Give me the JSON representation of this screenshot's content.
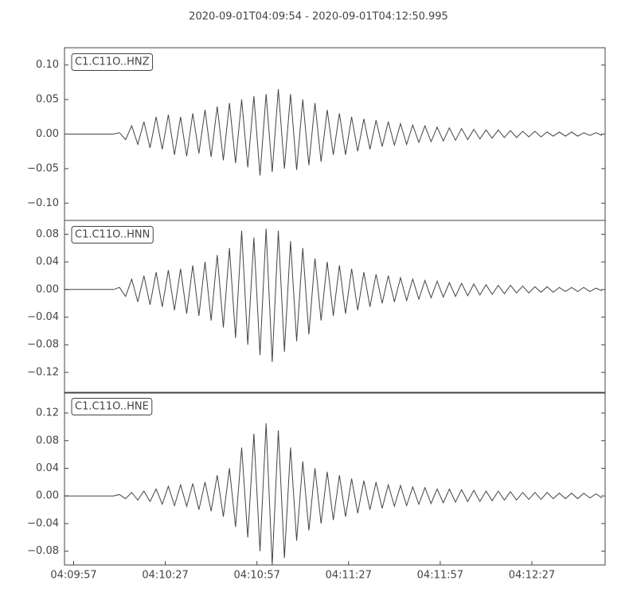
{
  "chart_data": [
    {
      "type": "line",
      "title": "2020-09-01T04:09:54  -  2020-09-01T04:12:50.995",
      "x": [
        0,
        2,
        4,
        6,
        8,
        10,
        12,
        14,
        16,
        18,
        20,
        22,
        24,
        26,
        28,
        30,
        32,
        34,
        36,
        38,
        40,
        42,
        44,
        46,
        48,
        50,
        52,
        54,
        56,
        58,
        60,
        62,
        64,
        66,
        68,
        70,
        72,
        74,
        76,
        78,
        80,
        82,
        84,
        86,
        88,
        90,
        92,
        94,
        96,
        98,
        100,
        102,
        104,
        106,
        108,
        110,
        112,
        114,
        116,
        118,
        120,
        122,
        124,
        126,
        128,
        130,
        132,
        134,
        136,
        138,
        140,
        142,
        144,
        146,
        148,
        150,
        152,
        154,
        156,
        158,
        160,
        162,
        164,
        166,
        168,
        170,
        172,
        174,
        176
      ],
      "xlim": [
        0,
        176.995
      ],
      "ylim": [
        -0.125,
        0.125
      ],
      "yticks": [
        {
          "value": -0.1,
          "label": "−0.10"
        },
        {
          "value": -0.05,
          "label": "−0.05"
        },
        {
          "value": 0,
          "label": "0.00"
        },
        {
          "value": 0.05,
          "label": "0.05"
        },
        {
          "value": 0.1,
          "label": "0.10"
        }
      ],
      "series": [
        {
          "name": "C1.C11O..HNZ",
          "color": "#444444",
          "values": [
            0,
            0,
            0,
            0,
            0,
            0,
            0,
            0,
            0,
            0.002,
            -0.008,
            0.012,
            -0.015,
            0.018,
            -0.02,
            0.025,
            -0.022,
            0.028,
            -0.03,
            0.025,
            -0.032,
            0.03,
            -0.028,
            0.035,
            -0.033,
            0.04,
            -0.038,
            0.045,
            -0.042,
            0.05,
            -0.048,
            0.055,
            -0.06,
            0.058,
            -0.055,
            0.065,
            -0.05,
            0.058,
            -0.052,
            0.05,
            -0.045,
            0.045,
            -0.04,
            0.035,
            -0.03,
            0.03,
            -0.03,
            0.025,
            -0.025,
            0.022,
            -0.022,
            0.02,
            -0.018,
            0.018,
            -0.016,
            0.015,
            -0.015,
            0.013,
            -0.012,
            0.012,
            -0.011,
            0.01,
            -0.01,
            0.009,
            -0.009,
            0.008,
            -0.008,
            0.007,
            -0.007,
            0.006,
            -0.006,
            0.006,
            -0.005,
            0.005,
            -0.005,
            0.004,
            -0.004,
            0.004,
            -0.004,
            0.003,
            -0.003,
            0.003,
            -0.003,
            0.003,
            -0.003,
            0.002,
            -0.002,
            0.002,
            -0.002
          ]
        }
      ]
    },
    {
      "type": "line",
      "x": [
        0,
        2,
        4,
        6,
        8,
        10,
        12,
        14,
        16,
        18,
        20,
        22,
        24,
        26,
        28,
        30,
        32,
        34,
        36,
        38,
        40,
        42,
        44,
        46,
        48,
        50,
        52,
        54,
        56,
        58,
        60,
        62,
        64,
        66,
        68,
        70,
        72,
        74,
        76,
        78,
        80,
        82,
        84,
        86,
        88,
        90,
        92,
        94,
        96,
        98,
        100,
        102,
        104,
        106,
        108,
        110,
        112,
        114,
        116,
        118,
        120,
        122,
        124,
        126,
        128,
        130,
        132,
        134,
        136,
        138,
        140,
        142,
        144,
        146,
        148,
        150,
        152,
        154,
        156,
        158,
        160,
        162,
        164,
        166,
        168,
        170,
        172,
        174,
        176
      ],
      "xlim": [
        0,
        176.995
      ],
      "ylim": [
        -0.15,
        0.1
      ],
      "yticks": [
        {
          "value": -0.12,
          "label": "−0.12"
        },
        {
          "value": -0.08,
          "label": "−0.08"
        },
        {
          "value": -0.04,
          "label": "−0.04"
        },
        {
          "value": 0,
          "label": "0.00"
        },
        {
          "value": 0.04,
          "label": "0.04"
        },
        {
          "value": 0.08,
          "label": "0.08"
        }
      ],
      "series": [
        {
          "name": "C1.C11O..HNN",
          "color": "#444444",
          "values": [
            0,
            0,
            0,
            0,
            0,
            0,
            0,
            0,
            0,
            0.003,
            -0.01,
            0.015,
            -0.018,
            0.02,
            -0.022,
            0.025,
            -0.025,
            0.028,
            -0.03,
            0.03,
            -0.035,
            0.035,
            -0.038,
            0.04,
            -0.045,
            0.05,
            -0.055,
            0.06,
            -0.07,
            0.085,
            -0.08,
            0.075,
            -0.095,
            0.088,
            -0.105,
            0.085,
            -0.09,
            0.07,
            -0.075,
            0.06,
            -0.065,
            0.045,
            -0.045,
            0.04,
            -0.038,
            0.035,
            -0.035,
            0.03,
            -0.03,
            0.025,
            -0.025,
            0.022,
            -0.02,
            0.02,
            -0.018,
            0.017,
            -0.016,
            0.015,
            -0.014,
            0.013,
            -0.012,
            0.012,
            -0.011,
            0.01,
            -0.01,
            0.009,
            -0.009,
            0.008,
            -0.008,
            0.007,
            -0.007,
            0.006,
            -0.006,
            0.006,
            -0.005,
            0.005,
            -0.005,
            0.004,
            -0.004,
            0.004,
            -0.004,
            0.003,
            -0.003,
            0.003,
            -0.003,
            0.003,
            -0.003,
            0.002,
            -0.002
          ]
        }
      ]
    },
    {
      "type": "line",
      "x": [
        0,
        2,
        4,
        6,
        8,
        10,
        12,
        14,
        16,
        18,
        20,
        22,
        24,
        26,
        28,
        30,
        32,
        34,
        36,
        38,
        40,
        42,
        44,
        46,
        48,
        50,
        52,
        54,
        56,
        58,
        60,
        62,
        64,
        66,
        68,
        70,
        72,
        74,
        76,
        78,
        80,
        82,
        84,
        86,
        88,
        90,
        92,
        94,
        96,
        98,
        100,
        102,
        104,
        106,
        108,
        110,
        112,
        114,
        116,
        118,
        120,
        122,
        124,
        126,
        128,
        130,
        132,
        134,
        136,
        138,
        140,
        142,
        144,
        146,
        148,
        150,
        152,
        154,
        156,
        158,
        160,
        162,
        164,
        166,
        168,
        170,
        172,
        174,
        176
      ],
      "xlim": [
        0,
        176.995
      ],
      "ylim": [
        -0.1,
        0.15
      ],
      "xticks": [
        {
          "value": 3,
          "label": "04:09:57"
        },
        {
          "value": 33,
          "label": "04:10:27"
        },
        {
          "value": 63,
          "label": "04:10:57"
        },
        {
          "value": 93,
          "label": "04:11:27"
        },
        {
          "value": 123,
          "label": "04:11:57"
        },
        {
          "value": 153,
          "label": "04:12:27"
        }
      ],
      "yticks": [
        {
          "value": -0.08,
          "label": "−0.08"
        },
        {
          "value": -0.04,
          "label": "−0.04"
        },
        {
          "value": 0,
          "label": "0.00"
        },
        {
          "value": 0.04,
          "label": "0.04"
        },
        {
          "value": 0.08,
          "label": "0.08"
        },
        {
          "value": 0.12,
          "label": "0.12"
        }
      ],
      "series": [
        {
          "name": "C1.C11O..HNE",
          "color": "#444444",
          "values": [
            0,
            0,
            0,
            0,
            0,
            0,
            0,
            0,
            0,
            0.002,
            -0.004,
            0.005,
            -0.006,
            0.007,
            -0.008,
            0.01,
            -0.012,
            0.014,
            -0.014,
            0.016,
            -0.015,
            0.018,
            -0.02,
            0.02,
            -0.022,
            0.03,
            -0.03,
            0.04,
            -0.045,
            0.07,
            -0.06,
            0.09,
            -0.08,
            0.105,
            -0.1,
            0.095,
            -0.09,
            0.07,
            -0.065,
            0.05,
            -0.05,
            0.04,
            -0.04,
            0.035,
            -0.035,
            0.03,
            -0.03,
            0.025,
            -0.025,
            0.022,
            -0.02,
            0.02,
            -0.018,
            0.016,
            -0.015,
            0.015,
            -0.014,
            0.013,
            -0.012,
            0.012,
            -0.011,
            0.01,
            -0.01,
            0.01,
            -0.009,
            0.009,
            -0.008,
            0.008,
            -0.008,
            0.007,
            -0.007,
            0.007,
            -0.006,
            0.006,
            -0.006,
            0.005,
            -0.005,
            0.005,
            -0.005,
            0.005,
            -0.004,
            0.004,
            -0.004,
            0.004,
            -0.004,
            0.004,
            -0.003,
            0.003,
            -0.003
          ]
        }
      ]
    }
  ]
}
